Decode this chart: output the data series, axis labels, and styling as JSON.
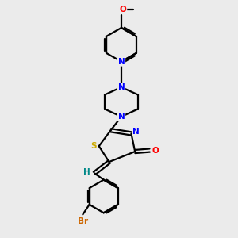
{
  "background_color": "#ebebeb",
  "bond_color": "#000000",
  "atom_colors": {
    "N": "#0000ff",
    "O": "#ff0000",
    "S": "#ccaa00",
    "Br": "#cc6600",
    "H": "#008888",
    "C": "#000000"
  },
  "figsize": [
    3.0,
    3.0
  ],
  "dpi": 100
}
